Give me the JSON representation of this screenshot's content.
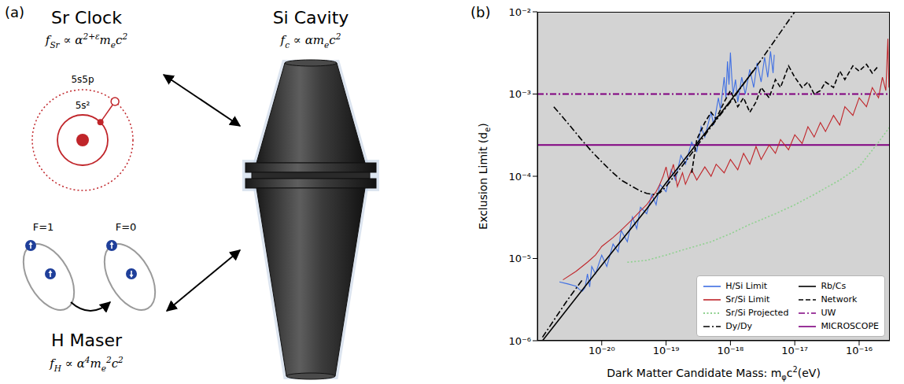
{
  "panel_a": {
    "label": "(a)",
    "sr_clock": {
      "title": "Sr Clock",
      "formula": [
        {
          "t": "f"
        },
        {
          "sub": "Sr"
        },
        {
          "t": " ∝ α"
        },
        {
          "sup": "2+ε"
        },
        {
          "t": "m"
        },
        {
          "sub": "e"
        },
        {
          "t": "c"
        },
        {
          "sup": "2"
        }
      ],
      "outer_orbital": "5s5p",
      "inner_orbital": "5s²"
    },
    "si_cavity": {
      "title": "Si Cavity",
      "formula": [
        {
          "t": "f"
        },
        {
          "sub": "c"
        },
        {
          "t": " ∝ αm"
        },
        {
          "sub": "e"
        },
        {
          "t": "c"
        },
        {
          "sup": "2"
        }
      ]
    },
    "h_maser": {
      "title": "H Maser",
      "formula": [
        {
          "t": "f"
        },
        {
          "sub": "H"
        },
        {
          "t": " ∝ α"
        },
        {
          "sup": "4"
        },
        {
          "t": "m"
        },
        {
          "sub": "e"
        },
        {
          "sup": "2"
        },
        {
          "t": "c"
        },
        {
          "sup": "2"
        }
      ],
      "states": [
        "F=1",
        "F=0"
      ]
    }
  },
  "chart_data": {
    "panel_label": "(b)",
    "type": "line",
    "log": true,
    "grid": false,
    "legend": "lower right",
    "xlabel": [
      {
        "t": "Dark Matter Candidate Mass: m"
      },
      {
        "sub": "φ"
      },
      {
        "t": "c"
      },
      {
        "sup": "2"
      },
      {
        "t": "(eV)"
      }
    ],
    "ylabel": [
      {
        "t": "Exclusion Limit (d"
      },
      {
        "sub": "e"
      },
      {
        "t": ")"
      }
    ],
    "xlim": [
      1e-21,
      3e-16
    ],
    "xticks": [
      {
        "value": 1e-20,
        "label": "10⁻²⁰"
      },
      {
        "value": 1e-19,
        "label": "10⁻¹⁹"
      },
      {
        "value": 1e-18,
        "label": "10⁻¹⁸"
      },
      {
        "value": 1e-17,
        "label": "10⁻¹⁷"
      },
      {
        "value": 1e-16,
        "label": "10⁻¹⁶"
      }
    ],
    "ylim": [
      1e-06,
      0.01
    ],
    "yticks": [
      {
        "value": 1e-06,
        "label": "10⁻⁶"
      },
      {
        "value": 1e-05,
        "label": "10⁻⁵"
      },
      {
        "value": 0.0001,
        "label": "10⁻⁴"
      },
      {
        "value": 0.001,
        "label": "10⁻³"
      },
      {
        "value": 0.01,
        "label": "10⁻²"
      }
    ],
    "series": [
      {
        "name": "H/Si Limit",
        "color": "#3f6fe3",
        "line_style": "solid",
        "x": [
          2.2e-21,
          3e-21,
          4e-21,
          4.5e-21,
          5e-21,
          5.5e-21,
          6e-21,
          6.5e-21,
          7e-21,
          8e-21,
          1e-20,
          1.2e-20,
          1.5e-20,
          1.8e-20,
          2e-20,
          2.5e-20,
          3e-20,
          3.5e-20,
          4e-20,
          5e-20,
          6e-20,
          7e-20,
          8e-20,
          1e-19,
          1.2e-19,
          1.4e-19,
          1.7e-19,
          2e-19,
          2.5e-19,
          3e-19,
          3.5e-19,
          4e-19,
          5e-19,
          5.5e-19,
          6.5e-19,
          7e-19,
          8e-19,
          8.5e-19,
          9e-19,
          9.5e-19,
          1e-18,
          1.05e-18,
          1.1e-18,
          1.2e-18,
          1.3e-18,
          1.5e-18,
          1.7e-18,
          2e-18,
          2.3e-18,
          2.6e-18,
          3e-18,
          3.4e-18,
          3.8e-18,
          4.2e-18,
          4.6e-18,
          4.8e-18
        ],
        "values": [
          5.2e-06,
          4.9e-06,
          4.6e-06,
          4.2e-06,
          4e-06,
          4.4e-06,
          6.5e-06,
          4.5e-06,
          8e-06,
          6.5e-06,
          1.1e-05,
          8e-06,
          1.5e-05,
          1.2e-05,
          2.2e-05,
          1.6e-05,
          3.2e-05,
          2.3e-05,
          4.2e-05,
          3.5e-05,
          6e-05,
          4.5e-05,
          8e-05,
          6.5e-05,
          0.00012,
          9e-05,
          0.00018,
          0.00014,
          0.00026,
          0.0002,
          0.0004,
          0.0003,
          0.0006,
          0.00042,
          0.0009,
          0.00065,
          0.0016,
          0.0009,
          0.0025,
          0.0013,
          0.0032,
          0.0016,
          0.001,
          0.0015,
          0.0008,
          0.0016,
          0.001,
          0.002,
          0.0012,
          0.0024,
          0.0014,
          0.0028,
          0.0016,
          0.0033,
          0.0018,
          0.003
        ]
      },
      {
        "name": "Sr/Si Limit",
        "color": "#c0252a",
        "line_style": "solid",
        "x": [
          2.5e-21,
          4e-21,
          6e-21,
          8e-21,
          1e-20,
          1.5e-20,
          2e-20,
          3e-20,
          4e-20,
          5e-20,
          6e-20,
          7e-20,
          8e-20,
          9e-20,
          1e-19,
          1.1e-19,
          1.3e-19,
          1.5e-19,
          1.8e-19,
          2e-19,
          2.5e-19,
          3e-19,
          4e-19,
          5e-19,
          6e-19,
          8e-19,
          1e-18,
          1.3e-18,
          1.6e-18,
          2e-18,
          2.5e-18,
          3e-18,
          4e-18,
          5e-18,
          6e-18,
          8e-18,
          1e-17,
          1.3e-17,
          1.6e-17,
          2e-17,
          2.5e-17,
          3e-17,
          4e-17,
          5e-17,
          6e-17,
          8e-17,
          1e-16,
          1.3e-16,
          1.6e-16,
          2e-16,
          2.3e-16,
          2.6e-16,
          2.8e-16,
          2.9e-16,
          3e-16
        ],
        "values": [
          5.5e-06,
          7e-06,
          9e-06,
          1.1e-05,
          1.4e-05,
          1.8e-05,
          2.2e-05,
          3e-05,
          3.8e-05,
          4.5e-05,
          5.5e-05,
          6.5e-05,
          8e-05,
          0.0001,
          0.00013,
          9e-05,
          0.00014,
          7.5e-05,
          0.00011,
          8e-05,
          0.00012,
          9e-05,
          0.00013,
          0.0001,
          0.00014,
          0.00011,
          0.00016,
          0.00012,
          0.00019,
          0.00014,
          0.00023,
          0.00016,
          0.00024,
          0.00019,
          0.00028,
          0.00021,
          0.00032,
          0.00025,
          0.0004,
          0.0003,
          0.00045,
          0.00035,
          0.00055,
          0.00042,
          0.0007,
          0.00055,
          0.0009,
          0.0007,
          0.0012,
          0.0009,
          0.0016,
          0.0011,
          0.0047,
          0.0012,
          0.002
        ]
      },
      {
        "name": "Sr/Si Projected",
        "color": "#8fd18f",
        "line_style": "dotted",
        "x": [
          2.5e-20,
          5e-20,
          1e-19,
          2e-19,
          5e-19,
          1e-18,
          2e-18,
          5e-18,
          1e-17,
          2e-17,
          5e-17,
          1e-16,
          2e-16,
          3e-16
        ],
        "values": [
          9e-06,
          9.5e-06,
          1.1e-05,
          1.3e-05,
          1.6e-05,
          2e-05,
          2.6e-05,
          3.5e-05,
          4.5e-05,
          6e-05,
          9e-05,
          0.00013,
          0.00026,
          0.0004
        ]
      },
      {
        "name": "Dy/Dy",
        "color": "#000000",
        "line_style": "dashdot",
        "x": [
          1.2e-21,
          2e-21,
          3e-21,
          5e-21,
          5e-21,
          1.8e-21,
          2.5e-21,
          3.5e-21,
          5e-21,
          7e-21,
          1e-20,
          1.5e-20,
          2e-20,
          3e-20,
          4e-20,
          5e-20,
          6.5e-20,
          8e-20,
          1e-19,
          2e-19,
          5e-19,
          1e-18,
          3e-18,
          1e-17
        ],
        "values": [
          1.1e-06,
          2e-06,
          3.2e-06,
          5.5e-06,
          null,
          0.0007,
          0.00052,
          0.00038,
          0.00027,
          0.0002,
          0.00015,
          0.00011,
          9e-05,
          7.5e-05,
          6.6e-05,
          6.2e-05,
          6e-05,
          6.3e-05,
          7.5e-05,
          0.00015,
          0.0004,
          0.0008,
          0.0026,
          0.01
        ]
      },
      {
        "name": "Rb/Cs",
        "color": "#000000",
        "line_style": "solid",
        "x": [
          1.2e-21,
          1e-20,
          5e-20,
          1e-19,
          1e-18,
          2.5e-18
        ],
        "values": [
          1e-06,
          8.3e-06,
          4e-05,
          8.3e-05,
          0.00083,
          0.0021
        ]
      },
      {
        "name": "Network",
        "color": "#000000",
        "line_style": "dashed",
        "x": [
          2.5e-19,
          3e-19,
          4e-19,
          5e-19,
          6e-19,
          8e-19,
          1e-18,
          1.3e-18,
          1.6e-18,
          2e-18,
          2.5e-18,
          3e-18,
          4e-18,
          5e-18,
          6e-18,
          8e-18,
          1e-17,
          1.3e-17,
          1.6e-17,
          2e-17,
          2.5e-17,
          3e-17,
          4e-17,
          5e-17,
          6e-17,
          8e-17,
          1e-16,
          1.3e-16,
          1.6e-16,
          2e-16
        ],
        "values": [
          0.00011,
          0.00028,
          0.00045,
          0.0006,
          0.0005,
          0.0008,
          0.0011,
          0.0007,
          0.0009,
          0.0006,
          0.0008,
          0.0012,
          0.0009,
          0.0015,
          0.0012,
          0.0022,
          0.0016,
          0.0012,
          0.0014,
          0.001,
          0.0011,
          0.0014,
          0.0012,
          0.0019,
          0.0015,
          0.0022,
          0.0019,
          0.0023,
          0.0018,
          0.0022
        ]
      },
      {
        "name": "UW",
        "color": "#800080",
        "line_style": "dashdot",
        "type": "hline",
        "values": [
          0.001
        ]
      },
      {
        "name": "MICROSCOPE",
        "color": "#800080",
        "line_style": "solid",
        "type": "hline",
        "values": [
          0.00024
        ]
      }
    ]
  }
}
